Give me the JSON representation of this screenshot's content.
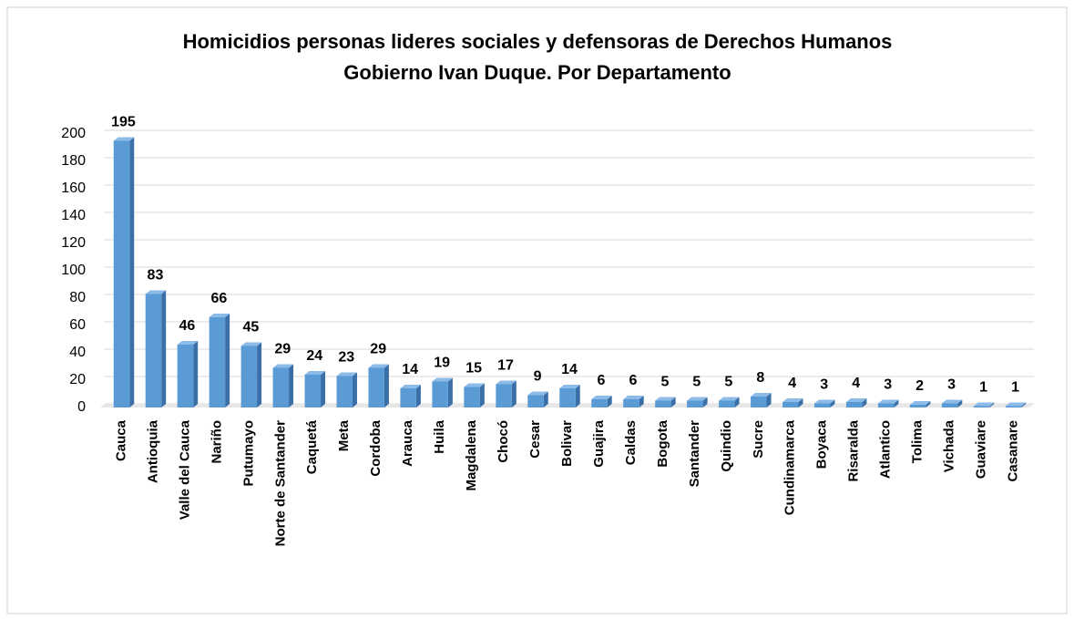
{
  "chart_data": {
    "type": "bar",
    "title": "Homicidios personas lideres sociales y defensoras de Derechos Humanos",
    "subtitle": "Gobierno Ivan Duque. Por Departamento",
    "categories": [
      "Cauca",
      "Antioquia",
      "Valle del Cauca",
      "Nariño",
      "Putumayo",
      "Norte de Santander",
      "Caquetá",
      "Meta",
      "Cordoba",
      "Arauca",
      "Huila",
      "Magdalena",
      "Chocó",
      "Cesar",
      "Bolivar",
      "Guajira",
      "Caldas",
      "Bogota",
      "Santander",
      "Quindio",
      "Sucre",
      "Cundinamarca",
      "Boyaca",
      "Risaralda",
      "Atlantico",
      "Tolima",
      "Vichada",
      "Guaviare",
      "Casanare"
    ],
    "values": [
      195,
      83,
      46,
      66,
      45,
      29,
      24,
      23,
      29,
      14,
      19,
      15,
      17,
      9,
      14,
      6,
      6,
      5,
      5,
      5,
      8,
      4,
      3,
      4,
      3,
      2,
      3,
      1,
      1
    ],
    "color": "#5b9bd5",
    "ylim": [
      0,
      200
    ],
    "yticks": [
      0,
      20,
      40,
      60,
      80,
      100,
      120,
      140,
      160,
      180,
      200
    ],
    "grid": true
  }
}
